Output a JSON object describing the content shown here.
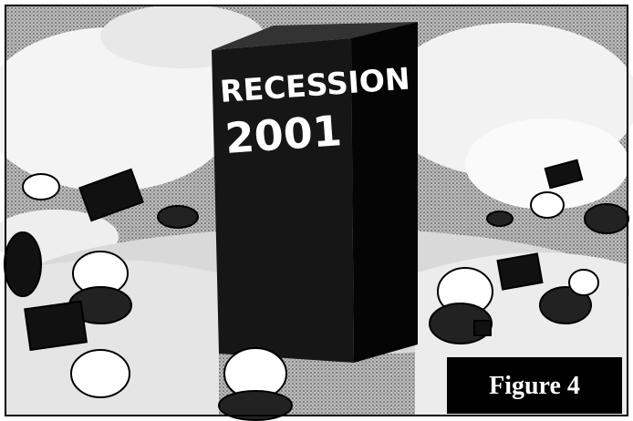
{
  "monolith": {
    "line1": "RECESSION",
    "line2": "2001"
  },
  "caption": "Figure 4"
}
